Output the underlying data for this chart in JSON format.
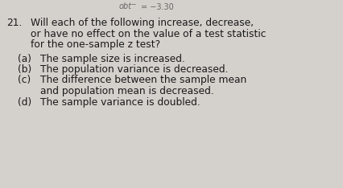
{
  "background_color": "#d4d1cc",
  "header": "-3.30",
  "header_prefix": "obt",
  "header_superscript": "−",
  "number": "21.",
  "question_lines": [
    "Will each of the following increase, decrease,",
    "or have no effect on the value of a test statistic",
    "for the one-sample z test?"
  ],
  "items": [
    {
      "label": "(a)",
      "text": "The sample size is increased."
    },
    {
      "label": "(b)",
      "text": "The population variance is decreased."
    },
    {
      "label": "(c)",
      "text": "The difference between the sample mean"
    },
    {
      "label": "",
      "text": "and population mean is decreased."
    },
    {
      "label": "(d)",
      "text": "The sample variance is doubled."
    }
  ],
  "text_color": "#1a1a1a",
  "header_color": "#666666",
  "font_size_header": 7.0,
  "font_size_main": 8.8,
  "fig_width": 4.27,
  "fig_height": 2.34,
  "dpi": 100
}
